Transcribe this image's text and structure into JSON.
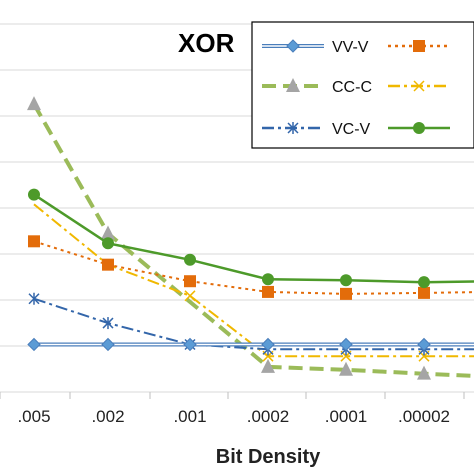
{
  "chart_data": {
    "type": "line",
    "title": "XOR",
    "xlabel": "Bit Density",
    "ylabel": "",
    "categories": [
      ".005",
      ".002",
      ".001",
      ".0002",
      ".0001",
      ".00002",
      "."
    ],
    "grid": true,
    "legend_position": "top-right",
    "series": [
      {
        "name": "VV-V",
        "color": "#4a7ebb",
        "style": "double-line-diamond",
        "values": [
          0.18,
          0.18,
          0.18,
          0.18,
          0.18,
          0.18,
          0.18
        ]
      },
      {
        "name": "",
        "color": "#e36c0a",
        "style": "dotted-square",
        "values": [
          1.24,
          1.0,
          0.83,
          0.72,
          0.7,
          0.71,
          0.72
        ]
      },
      {
        "name": "CC-C",
        "color": "#9bbb59",
        "style": "dashed-triangle",
        "values": [
          2.65,
          1.32,
          null,
          -0.05,
          -0.08,
          -0.12,
          -0.15
        ]
      },
      {
        "name": "",
        "color": "#f0b800",
        "style": "dashdot-x",
        "values": [
          1.62,
          1.0,
          0.68,
          0.06,
          0.06,
          0.06,
          0.06
        ]
      },
      {
        "name": "VC-V",
        "color": "#3366aa",
        "style": "dashdot-asterisk",
        "values": [
          0.65,
          0.4,
          0.18,
          0.13,
          0.13,
          0.13,
          0.13
        ]
      },
      {
        "name": "",
        "color": "#4d9a2a",
        "style": "solid-circle",
        "values": [
          1.72,
          1.22,
          1.05,
          0.85,
          0.84,
          0.82,
          0.83
        ]
      }
    ],
    "ylim": [
      -0.05,
      3.0
    ],
    "gridlines": [
      0,
      0.5,
      1.0,
      1.5,
      2.0,
      2.5,
      3.0
    ]
  }
}
